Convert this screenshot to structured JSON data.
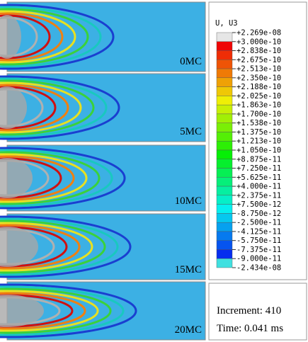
{
  "panels": [
    {
      "label": "0MC"
    },
    {
      "label": "5MC"
    },
    {
      "label": "10MC"
    },
    {
      "label": "15MC"
    },
    {
      "label": "20MC"
    }
  ],
  "legend": {
    "title": "U, U3",
    "labels": [
      "+2.269e-08",
      "+3.000e-10",
      "+2.838e-10",
      "+2.675e-10",
      "+2.513e-10",
      "+2.350e-10",
      "+2.188e-10",
      "+2.025e-10",
      "+1.863e-10",
      "+1.700e-10",
      "+1.538e-10",
      "+1.375e-10",
      "+1.213e-10",
      "+1.050e-10",
      "+8.875e-11",
      "+7.250e-11",
      "+5.625e-11",
      "+4.000e-11",
      "+2.375e-11",
      "+7.500e-12",
      "-8.750e-12",
      "-2.500e-11",
      "-4.125e-11",
      "-5.750e-11",
      "-7.375e-11",
      "-9.000e-11",
      "-2.434e-08"
    ]
  },
  "info": {
    "increment": "Increment: 410",
    "time": "Time: 0.041 ms"
  }
}
